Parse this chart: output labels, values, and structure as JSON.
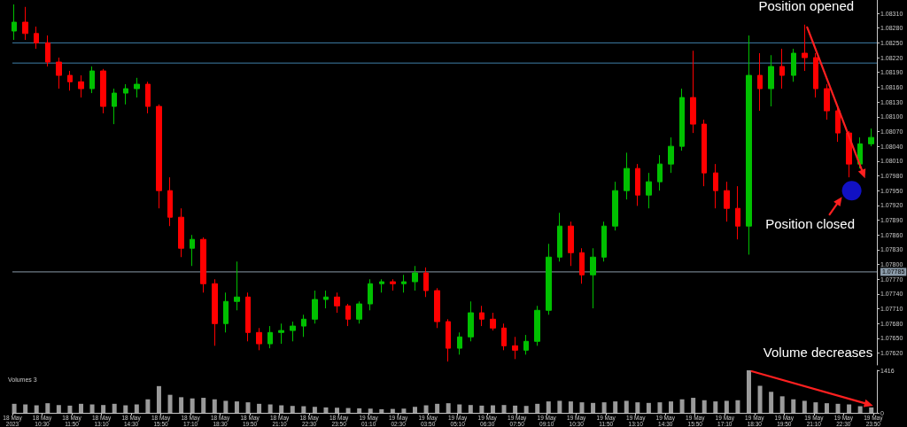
{
  "chart_data": [
    {
      "type": "candlestick",
      "x": [
        "2023-05-18T09:15",
        "2023-05-18T09:45",
        "2023-05-18T10:15",
        "2023-05-18T10:45",
        "2023-05-18T11:15",
        "2023-05-18T11:45",
        "2023-05-18T12:15",
        "2023-05-18T12:45",
        "2023-05-18T13:15",
        "2023-05-18T13:45",
        "2023-05-18T14:15",
        "2023-05-18T14:45",
        "2023-05-18T15:15",
        "2023-05-18T15:45",
        "2023-05-18T16:15",
        "2023-05-18T16:45",
        "2023-05-18T17:15",
        "2023-05-18T17:45",
        "2023-05-18T18:15",
        "2023-05-18T18:45",
        "2023-05-18T19:15",
        "2023-05-18T19:45",
        "2023-05-18T20:15",
        "2023-05-18T20:45",
        "2023-05-18T21:15",
        "2023-05-18T21:45",
        "2023-05-18T22:15",
        "2023-05-18T22:45",
        "2023-05-18T23:15",
        "2023-05-18T23:45",
        "2023-05-19T00:15",
        "2023-05-19T00:45",
        "2023-05-19T01:15",
        "2023-05-19T01:45",
        "2023-05-19T02:15",
        "2023-05-19T02:45",
        "2023-05-19T03:15",
        "2023-05-19T03:45",
        "2023-05-19T04:15",
        "2023-05-19T04:45",
        "2023-05-19T05:15",
        "2023-05-19T05:45",
        "2023-05-19T06:15",
        "2023-05-19T06:45",
        "2023-05-19T07:15",
        "2023-05-19T07:45",
        "2023-05-19T08:15",
        "2023-05-19T08:45",
        "2023-05-19T09:15",
        "2023-05-19T09:45",
        "2023-05-19T10:15",
        "2023-05-19T10:45",
        "2023-05-19T11:15",
        "2023-05-19T11:45",
        "2023-05-19T12:15",
        "2023-05-19T12:45",
        "2023-05-19T13:15",
        "2023-05-19T13:45",
        "2023-05-19T14:15",
        "2023-05-19T14:45",
        "2023-05-19T15:15",
        "2023-05-19T15:45",
        "2023-05-19T16:15",
        "2023-05-19T16:45",
        "2023-05-19T17:15",
        "2023-05-19T17:45",
        "2023-05-19T18:15",
        "2023-05-19T18:45",
        "2023-05-19T19:15",
        "2023-05-19T19:45",
        "2023-05-19T20:15",
        "2023-05-19T20:45",
        "2023-05-19T21:15",
        "2023-05-19T21:45",
        "2023-05-19T22:15",
        "2023-05-19T22:45",
        "2023-05-19T23:15",
        "2023-05-19T23:45"
      ],
      "ohlc": [
        [
          1.08274,
          1.08328,
          1.08256,
          1.08292
        ],
        [
          1.08292,
          1.08323,
          1.08256,
          1.08269
        ],
        [
          1.08269,
          1.08283,
          1.08238,
          1.0825
        ],
        [
          1.0825,
          1.08265,
          1.08202,
          1.08211
        ],
        [
          1.08211,
          1.0822,
          1.08157,
          1.08184
        ],
        [
          1.08184,
          1.08193,
          1.08153,
          1.08171
        ],
        [
          1.08171,
          1.08184,
          1.08139,
          1.08157
        ],
        [
          1.08157,
          1.08202,
          1.08148,
          1.08193
        ],
        [
          1.08193,
          1.08197,
          1.08107,
          1.08121
        ],
        [
          1.08121,
          1.08157,
          1.08085,
          1.08148
        ],
        [
          1.08148,
          1.08166,
          1.08125,
          1.08157
        ],
        [
          1.08157,
          1.08179,
          1.08139,
          1.08166
        ],
        [
          1.08166,
          1.08171,
          1.08107,
          1.08121
        ],
        [
          1.08121,
          1.08125,
          1.07914,
          1.0795
        ],
        [
          1.0795,
          1.07977,
          1.07878,
          1.07896
        ],
        [
          1.07896,
          1.07914,
          1.07815,
          1.07833
        ],
        [
          1.07833,
          1.0786,
          1.07797,
          1.07851
        ],
        [
          1.07851,
          1.07855,
          1.07743,
          1.07761
        ],
        [
          1.07761,
          1.0777,
          1.07635,
          1.0768
        ],
        [
          1.0768,
          1.07743,
          1.07662,
          1.07725
        ],
        [
          1.07725,
          1.07806,
          1.07707,
          1.07734
        ],
        [
          1.07734,
          1.07743,
          1.07644,
          1.07662
        ],
        [
          1.07662,
          1.07671,
          1.07626,
          1.07639
        ],
        [
          1.07639,
          1.07675,
          1.0763,
          1.07662
        ],
        [
          1.07662,
          1.0768,
          1.07639,
          1.07666
        ],
        [
          1.07666,
          1.07684,
          1.07644,
          1.07675
        ],
        [
          1.07675,
          1.07698,
          1.07653,
          1.07689
        ],
        [
          1.07689,
          1.07747,
          1.0768,
          1.07729
        ],
        [
          1.07729,
          1.07747,
          1.07711,
          1.07734
        ],
        [
          1.07734,
          1.07743,
          1.07702,
          1.07716
        ],
        [
          1.07716,
          1.0772,
          1.07675,
          1.07689
        ],
        [
          1.07689,
          1.07725,
          1.0768,
          1.0772
        ],
        [
          1.0772,
          1.0777,
          1.07707,
          1.07761
        ],
        [
          1.07761,
          1.0777,
          1.07743,
          1.07765
        ],
        [
          1.07765,
          1.0777,
          1.07747,
          1.07761
        ],
        [
          1.07761,
          1.07779,
          1.07743,
          1.07765
        ],
        [
          1.07765,
          1.07797,
          1.07747,
          1.07783
        ],
        [
          1.07783,
          1.07794,
          1.07734,
          1.07747
        ],
        [
          1.07747,
          1.07752,
          1.07671,
          1.07684
        ],
        [
          1.07684,
          1.07689,
          1.07603,
          1.0763
        ],
        [
          1.0763,
          1.07662,
          1.07617,
          1.07653
        ],
        [
          1.07653,
          1.07725,
          1.07644,
          1.07702
        ],
        [
          1.07702,
          1.07716,
          1.07675,
          1.07689
        ],
        [
          1.07689,
          1.07702,
          1.07666,
          1.07671
        ],
        [
          1.07671,
          1.0768,
          1.07626,
          1.07635
        ],
        [
          1.07635,
          1.07653,
          1.07608,
          1.07626
        ],
        [
          1.07626,
          1.07657,
          1.07617,
          1.07644
        ],
        [
          1.07644,
          1.07716,
          1.07635,
          1.07707
        ],
        [
          1.07707,
          1.07842,
          1.07698,
          1.07815
        ],
        [
          1.07815,
          1.07905,
          1.07806,
          1.07878
        ],
        [
          1.07878,
          1.07887,
          1.07797,
          1.07824
        ],
        [
          1.07824,
          1.07833,
          1.07761,
          1.07779
        ],
        [
          1.07779,
          1.07833,
          1.07711,
          1.07815
        ],
        [
          1.07815,
          1.07887,
          1.07806,
          1.07878
        ],
        [
          1.07878,
          1.07968,
          1.07869,
          1.0795
        ],
        [
          1.0795,
          1.08027,
          1.07932,
          1.07995
        ],
        [
          1.07995,
          1.08004,
          1.07919,
          1.07941
        ],
        [
          1.07941,
          1.07986,
          1.07914,
          1.07968
        ],
        [
          1.07968,
          1.08022,
          1.0795,
          1.08004
        ],
        [
          1.08004,
          1.08058,
          1.07986,
          1.0804
        ],
        [
          1.0804,
          1.08157,
          1.08031,
          1.08139
        ],
        [
          1.08139,
          1.08234,
          1.08067,
          1.08085
        ],
        [
          1.08085,
          1.08094,
          1.07959,
          1.07986
        ],
        [
          1.07986,
          1.08004,
          1.07914,
          1.0795
        ],
        [
          1.0795,
          1.07968,
          1.07887,
          1.07914
        ],
        [
          1.07914,
          1.07959,
          1.07851,
          1.07878
        ],
        [
          1.07878,
          1.08265,
          1.0782,
          1.08184
        ],
        [
          1.08184,
          1.08229,
          1.08112,
          1.08157
        ],
        [
          1.08157,
          1.08225,
          1.08121,
          1.08202
        ],
        [
          1.08202,
          1.08238,
          1.08157,
          1.08184
        ],
        [
          1.08184,
          1.08238,
          1.08171,
          1.08229
        ],
        [
          1.08229,
          1.08287,
          1.08193,
          1.0822
        ],
        [
          1.0822,
          1.08229,
          1.08139,
          1.08157
        ],
        [
          1.08157,
          1.08166,
          1.08094,
          1.08112
        ],
        [
          1.08112,
          1.08121,
          1.08049,
          1.08067
        ],
        [
          1.08067,
          1.08071,
          1.07977,
          1.08004
        ],
        [
          1.08004,
          1.08058,
          1.07995,
          1.08045
        ],
        [
          1.08045,
          1.08076,
          1.0804,
          1.08058
        ]
      ],
      "xlim": [
        "2023-05-18T09:10",
        "2023-05-20T00:00"
      ],
      "ylim": [
        1.07596,
        1.08337
      ],
      "yticks": [
        {
          "value": 1.0762,
          "label": "1.07620"
        },
        {
          "value": 1.0765,
          "label": "1.07650"
        },
        {
          "value": 1.0768,
          "label": "1.07680"
        },
        {
          "value": 1.0771,
          "label": "1.07710"
        },
        {
          "value": 1.0774,
          "label": "1.07740"
        },
        {
          "value": 1.0777,
          "label": "1.07770"
        },
        {
          "value": 1.078,
          "label": "1.07800"
        },
        {
          "value": 1.0783,
          "label": "1.07830"
        },
        {
          "value": 1.0786,
          "label": "1.07860"
        },
        {
          "value": 1.0789,
          "label": "1.07890"
        },
        {
          "value": 1.0792,
          "label": "1.07920"
        },
        {
          "value": 1.0795,
          "label": "1.07950"
        },
        {
          "value": 1.0798,
          "label": "1.07980"
        },
        {
          "value": 1.0801,
          "label": "1.08010"
        },
        {
          "value": 1.0804,
          "label": "1.08040"
        },
        {
          "value": 1.0807,
          "label": "1.08070"
        },
        {
          "value": 1.081,
          "label": "1.08100"
        },
        {
          "value": 1.0813,
          "label": "1.08130"
        },
        {
          "value": 1.0816,
          "label": "1.08160"
        },
        {
          "value": 1.0819,
          "label": "1.08190"
        },
        {
          "value": 1.0822,
          "label": "1.08220"
        },
        {
          "value": 1.0825,
          "label": "1.08250"
        },
        {
          "value": 1.0828,
          "label": "1.08280"
        },
        {
          "value": 1.0831,
          "label": "1.08310"
        }
      ],
      "tick_labels": "y",
      "ref_lines": [
        {
          "axis": "y",
          "value": 1.0825,
          "color": "#3f7fa8"
        },
        {
          "axis": "y",
          "value": 1.08209,
          "color": "#3f7fa8"
        },
        {
          "axis": "y",
          "value": 1.07785,
          "label": "1.07785",
          "color": "#8a9aa8"
        }
      ],
      "annotations": [
        {
          "text": "Position opened",
          "x": "2023-05-19T20:45",
          "y": 1.08287
        },
        {
          "text": "Position closed",
          "x": "2023-05-19T22:45",
          "y": 1.07977
        }
      ]
    },
    {
      "type": "bar",
      "title": "Volumes 3",
      "color": "#9a9a9a",
      "x": [
        "2023-05-18T09:15",
        "2023-05-18T09:45",
        "2023-05-18T10:15",
        "2023-05-18T10:45",
        "2023-05-18T11:15",
        "2023-05-18T11:45",
        "2023-05-18T12:15",
        "2023-05-18T12:45",
        "2023-05-18T13:15",
        "2023-05-18T13:45",
        "2023-05-18T14:15",
        "2023-05-18T14:45",
        "2023-05-18T15:15",
        "2023-05-18T15:45",
        "2023-05-18T16:15",
        "2023-05-18T16:45",
        "2023-05-18T17:15",
        "2023-05-18T17:45",
        "2023-05-18T18:15",
        "2023-05-18T18:45",
        "2023-05-18T19:15",
        "2023-05-18T19:45",
        "2023-05-18T20:15",
        "2023-05-18T20:45",
        "2023-05-18T21:15",
        "2023-05-18T21:45",
        "2023-05-18T22:15",
        "2023-05-18T22:45",
        "2023-05-18T23:15",
        "2023-05-18T23:45",
        "2023-05-19T00:15",
        "2023-05-19T00:45",
        "2023-05-19T01:15",
        "2023-05-19T01:45",
        "2023-05-19T02:15",
        "2023-05-19T02:45",
        "2023-05-19T03:15",
        "2023-05-19T03:45",
        "2023-05-19T04:15",
        "2023-05-19T04:45",
        "2023-05-19T05:15",
        "2023-05-19T05:45",
        "2023-05-19T06:15",
        "2023-05-19T06:45",
        "2023-05-19T07:15",
        "2023-05-19T07:45",
        "2023-05-19T08:15",
        "2023-05-19T08:45",
        "2023-05-19T09:15",
        "2023-05-19T09:45",
        "2023-05-19T10:15",
        "2023-05-19T10:45",
        "2023-05-19T11:15",
        "2023-05-19T11:45",
        "2023-05-19T12:15",
        "2023-05-19T12:45",
        "2023-05-19T13:15",
        "2023-05-19T13:45",
        "2023-05-19T14:15",
        "2023-05-19T14:45",
        "2023-05-19T15:15",
        "2023-05-19T15:45",
        "2023-05-19T16:15",
        "2023-05-19T16:45",
        "2023-05-19T17:15",
        "2023-05-19T17:45",
        "2023-05-19T18:15",
        "2023-05-19T18:45",
        "2023-05-19T19:15",
        "2023-05-19T19:45",
        "2023-05-19T20:15",
        "2023-05-19T20:45",
        "2023-05-19T21:15",
        "2023-05-19T21:45",
        "2023-05-19T22:15",
        "2023-05-19T22:45",
        "2023-05-19T23:15",
        "2023-05-19T23:45"
      ],
      "values": [
        300,
        280,
        250,
        320,
        260,
        240,
        300,
        280,
        260,
        300,
        250,
        280,
        450,
        890,
        600,
        520,
        480,
        500,
        450,
        400,
        380,
        350,
        300,
        280,
        250,
        230,
        220,
        200,
        180,
        170,
        160,
        150,
        140,
        120,
        130,
        140,
        200,
        250,
        300,
        320,
        280,
        260,
        240,
        250,
        260,
        240,
        230,
        300,
        380,
        400,
        380,
        350,
        330,
        350,
        380,
        400,
        350,
        330,
        350,
        380,
        450,
        500,
        420,
        380,
        400,
        420,
        1416,
        900,
        700,
        550,
        450,
        400,
        350,
        320,
        300,
        280,
        220,
        180
      ],
      "xlim": [
        "2023-05-18T09:10",
        "2023-05-20T00:00"
      ],
      "ylim": [
        0,
        1416
      ],
      "yticks": [
        0,
        1416
      ],
      "xticks": [
        {
          "value": "2023-05-18T09:10",
          "label": "18 May 2023"
        },
        {
          "value": "2023-05-18T10:30",
          "label": "18 May 10:30"
        },
        {
          "value": "2023-05-18T11:50",
          "label": "18 May 11:50"
        },
        {
          "value": "2023-05-18T13:10",
          "label": "18 May 13:10"
        },
        {
          "value": "2023-05-18T14:30",
          "label": "18 May 14:30"
        },
        {
          "value": "2023-05-18T15:50",
          "label": "18 May 15:50"
        },
        {
          "value": "2023-05-18T17:10",
          "label": "18 May 17:10"
        },
        {
          "value": "2023-05-18T18:30",
          "label": "18 May 18:30"
        },
        {
          "value": "2023-05-18T19:50",
          "label": "18 May 19:50"
        },
        {
          "value": "2023-05-18T21:10",
          "label": "18 May 21:10"
        },
        {
          "value": "2023-05-18T22:30",
          "label": "18 May 22:30"
        },
        {
          "value": "2023-05-18T23:50",
          "label": "18 May 23:50"
        },
        {
          "value": "2023-05-19T01:10",
          "label": "19 May 01:10"
        },
        {
          "value": "2023-05-19T02:30",
          "label": "19 May 02:30"
        },
        {
          "value": "2023-05-19T03:50",
          "label": "19 May 03:50"
        },
        {
          "value": "2023-05-19T05:10",
          "label": "19 May 05:10"
        },
        {
          "value": "2023-05-19T06:30",
          "label": "19 May 06:30"
        },
        {
          "value": "2023-05-19T07:50",
          "label": "19 May 07:50"
        },
        {
          "value": "2023-05-19T09:10",
          "label": "19 May 09:10"
        },
        {
          "value": "2023-05-19T10:30",
          "label": "19 May 10:30"
        },
        {
          "value": "2023-05-19T11:50",
          "label": "19 May 11:50"
        },
        {
          "value": "2023-05-19T13:10",
          "label": "19 May 13:10"
        },
        {
          "value": "2023-05-19T14:30",
          "label": "19 May 14:30"
        },
        {
          "value": "2023-05-19T15:50",
          "label": "19 May 15:50"
        },
        {
          "value": "2023-05-19T17:10",
          "label": "19 May 17:10"
        },
        {
          "value": "2023-05-19T18:30",
          "label": "19 May 18:30"
        },
        {
          "value": "2023-05-19T19:50",
          "label": "19 May 19:50"
        },
        {
          "value": "2023-05-19T21:10",
          "label": "19 May 21:10"
        },
        {
          "value": "2023-05-19T22:30",
          "label": "19 May 22:30"
        },
        {
          "value": "2023-05-19T23:50",
          "label": "19 May 23:50"
        }
      ],
      "annotations": [
        {
          "text": "Volume decreases",
          "x": "2023-05-19T18:15",
          "y": 1416
        }
      ]
    }
  ]
}
